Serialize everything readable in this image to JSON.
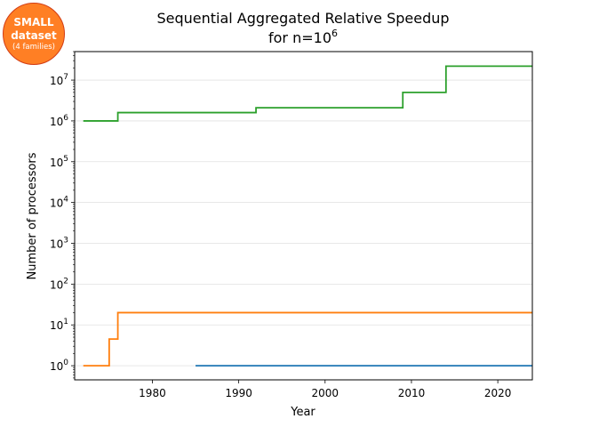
{
  "badge": {
    "line1": "SMALL",
    "line2": "dataset",
    "line3": "(4 families)",
    "fill_color": "#ff7f24",
    "border_color": "#d23c14"
  },
  "chart_data": {
    "type": "line",
    "step": "post",
    "title": "Sequential Aggregated Relative Speedup",
    "title_line2_prefix": "for n=10",
    "title_line2_exponent": "6",
    "xlabel": "Year",
    "ylabel": "Number of processors",
    "xlim": [
      1971,
      2024
    ],
    "ylim": [
      0.45,
      50000000
    ],
    "yscale": "log",
    "grid": "y-major",
    "xticks": [
      1980,
      1990,
      2000,
      2010,
      2020
    ],
    "yticks": [
      {
        "base": "10",
        "exp": "0",
        "value": 1
      },
      {
        "base": "10",
        "exp": "1",
        "value": 10
      },
      {
        "base": "10",
        "exp": "2",
        "value": 100
      },
      {
        "base": "10",
        "exp": "3",
        "value": 1000
      },
      {
        "base": "10",
        "exp": "4",
        "value": 10000
      },
      {
        "base": "10",
        "exp": "5",
        "value": 100000
      },
      {
        "base": "10",
        "exp": "6",
        "value": 1000000
      },
      {
        "base": "10",
        "exp": "7",
        "value": 10000000
      }
    ],
    "series": [
      {
        "color": "#1f77b4",
        "x": [
          1985,
          2024
        ],
        "y": [
          1,
          1
        ]
      },
      {
        "color": "#ff7f0e",
        "x": [
          1972,
          1975,
          1976,
          2024
        ],
        "y": [
          1,
          4.5,
          20,
          20
        ]
      },
      {
        "color": "#2ca02c",
        "x": [
          1972,
          1976,
          1992,
          2009,
          2014,
          2024
        ],
        "y": [
          1000000,
          1600000,
          2100000,
          5000000,
          22000000,
          22000000
        ]
      }
    ]
  }
}
